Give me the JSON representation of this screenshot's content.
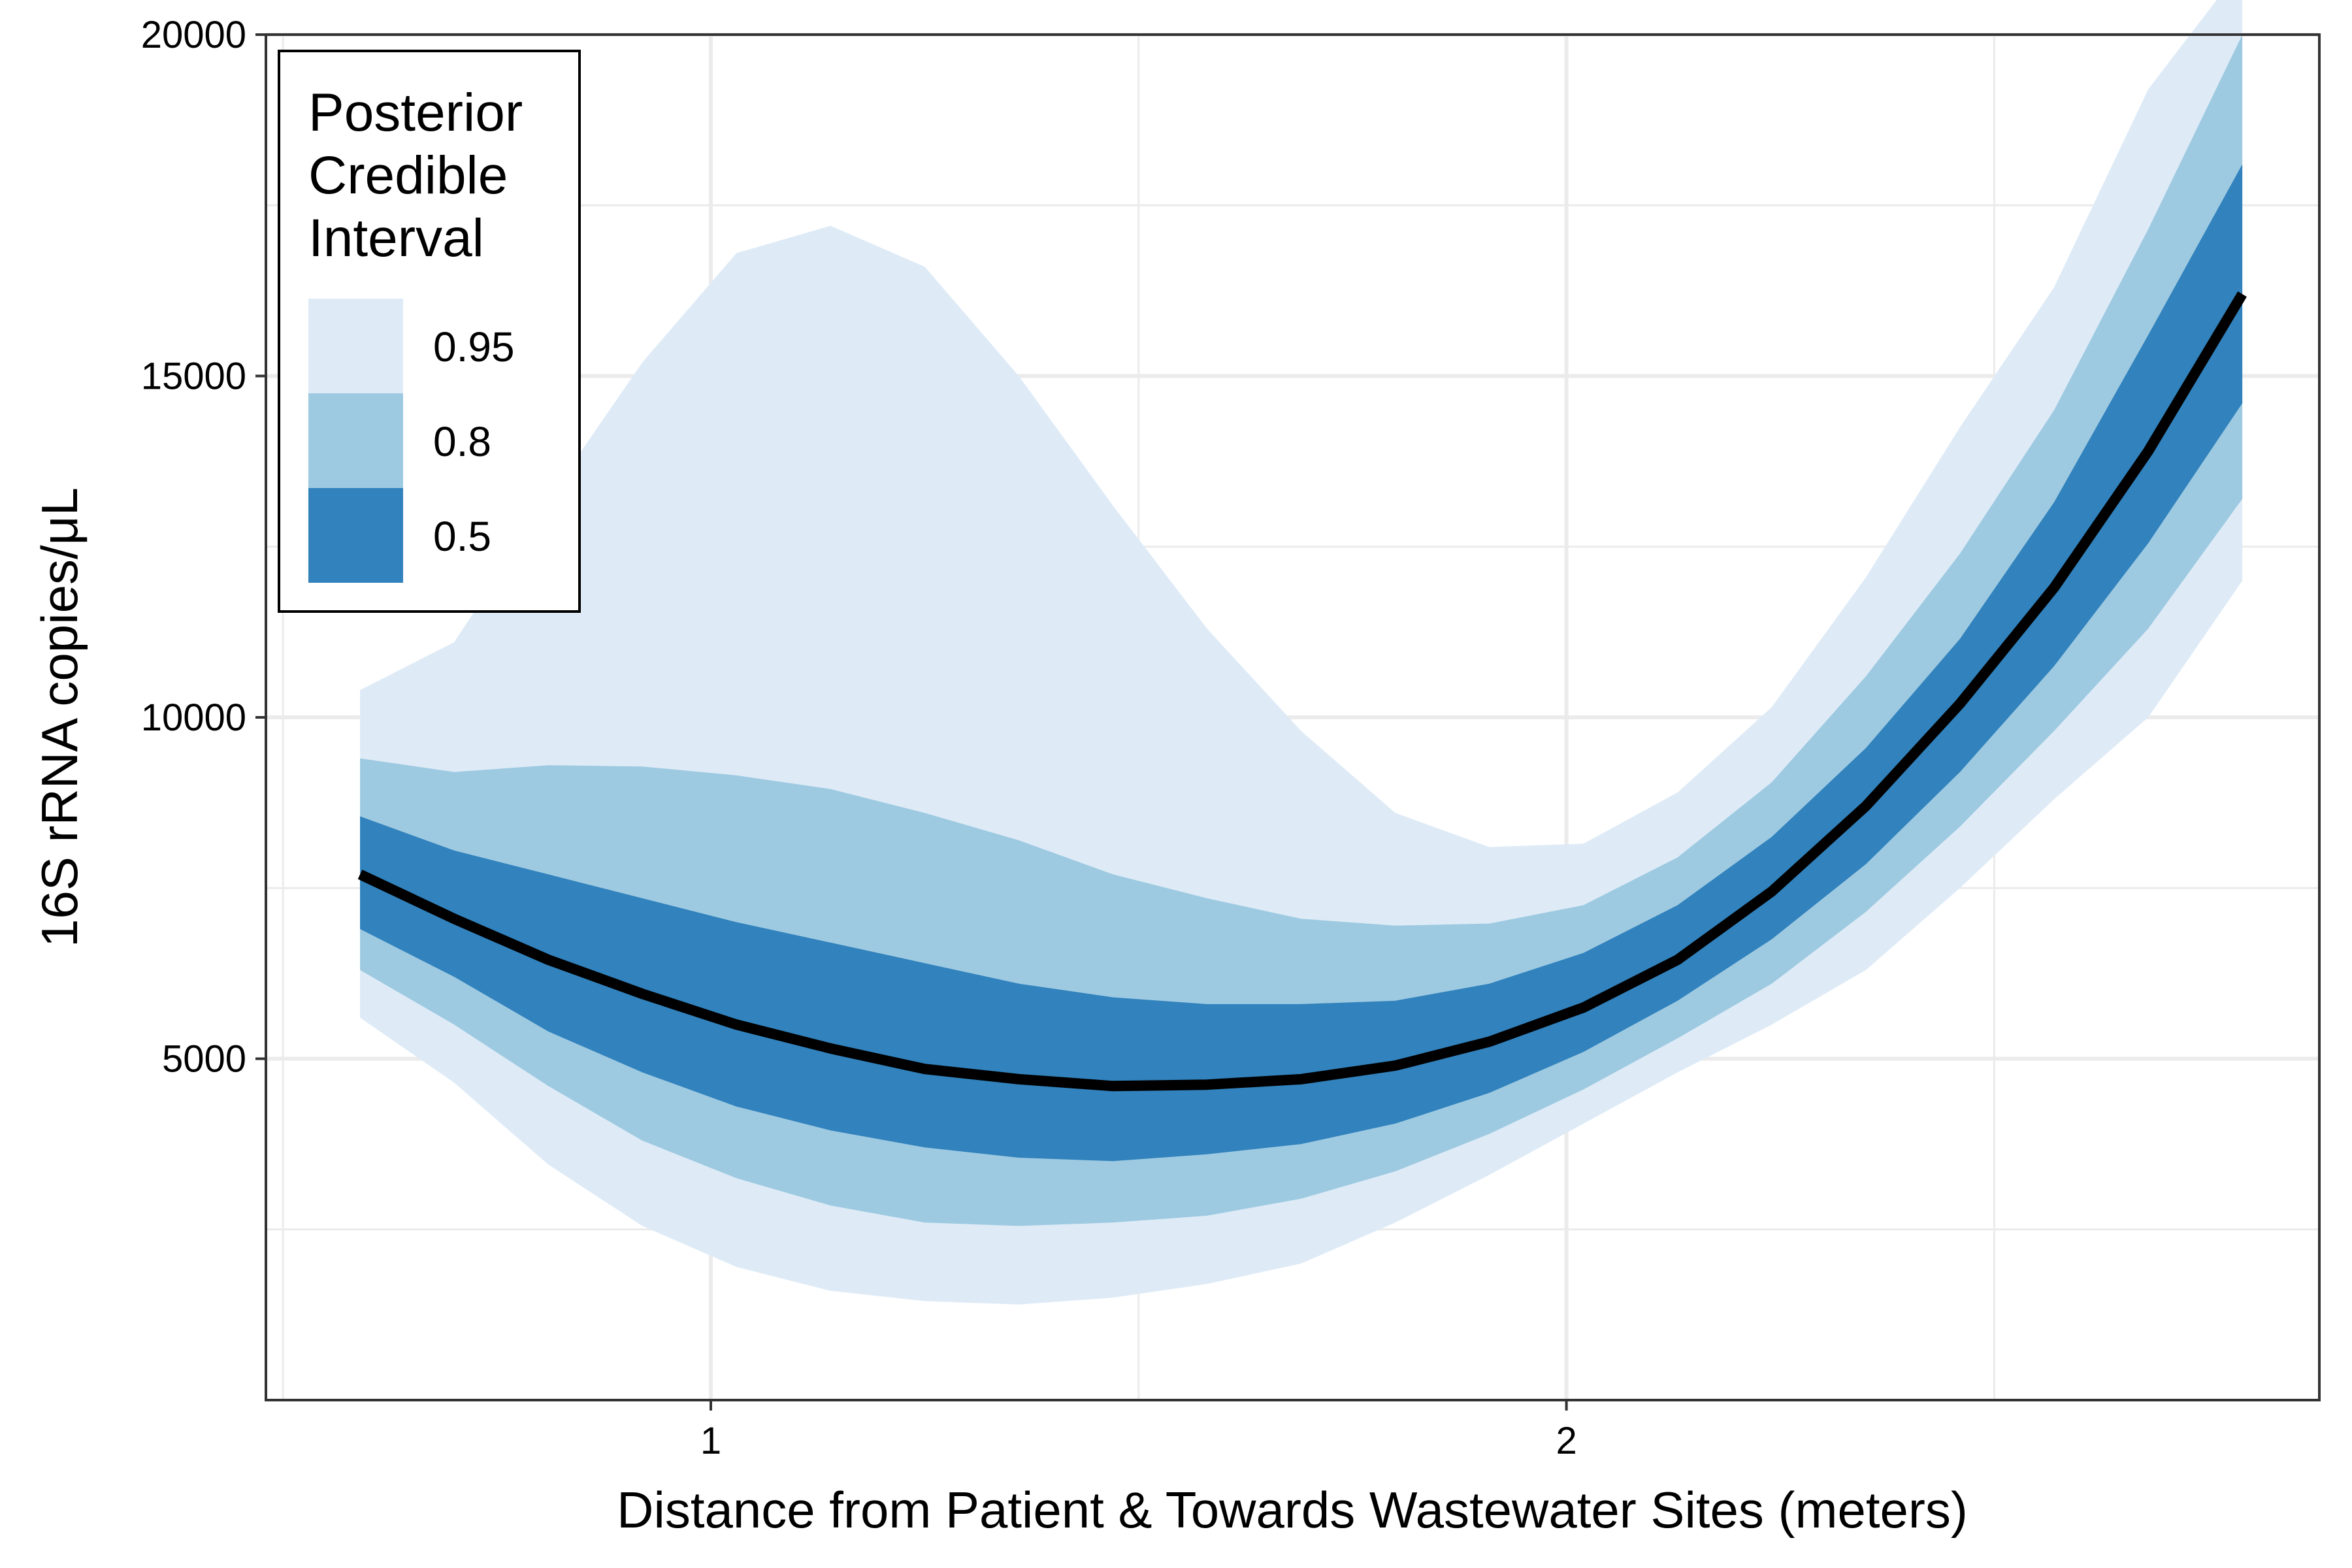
{
  "chart_data": {
    "type": "area",
    "xlabel": "Distance from Patient & Towards Wastewater Sites (meters)",
    "ylabel": "16S rRNA copies/μL",
    "xlim": [
      0.48,
      2.88
    ],
    "ylim": [
      0,
      20000
    ],
    "x_ticks": [
      1,
      2
    ],
    "x_tick_labels": [
      "1",
      "2"
    ],
    "y_ticks": [
      5000,
      10000,
      15000,
      20000
    ],
    "y_tick_labels": [
      "5000",
      "10000",
      "15000",
      "20000"
    ],
    "grid": true,
    "legend": {
      "title_lines": [
        "Posterior",
        "Credible",
        "Interval"
      ],
      "position": "top-left",
      "entries": [
        {
          "label": "0.95",
          "color": "#deebf7"
        },
        {
          "label": "0.8",
          "color": "#9ecae1"
        },
        {
          "label": "0.5",
          "color": "#3182bd"
        }
      ]
    },
    "line_color": "#000000",
    "x": [
      0.59,
      0.7,
      0.81,
      0.92,
      1.03,
      1.14,
      1.25,
      1.36,
      1.47,
      1.58,
      1.69,
      1.8,
      1.91,
      2.02,
      2.13,
      2.24,
      2.35,
      2.46,
      2.57,
      2.68,
      2.79
    ],
    "median": [
      7700,
      7050,
      6450,
      5950,
      5500,
      5150,
      4850,
      4700,
      4600,
      4620,
      4700,
      4900,
      5250,
      5750,
      6450,
      7450,
      8700,
      10200,
      11900,
      13900,
      16200
    ],
    "bands": [
      {
        "level": "0.95",
        "lower": [
          5600,
          4650,
          3450,
          2550,
          1950,
          1600,
          1450,
          1400,
          1500,
          1700,
          2000,
          2600,
          3300,
          4050,
          4800,
          5500,
          6300,
          7500,
          8800,
          10000,
          12000
        ],
        "upper": [
          10400,
          11100,
          13200,
          15200,
          16800,
          17200,
          16600,
          15000,
          13100,
          11300,
          9800,
          8600,
          8100,
          8150,
          8900,
          10150,
          12050,
          14250,
          16300,
          19200,
          21000
        ]
      },
      {
        "level": "0.8",
        "lower": [
          6300,
          5500,
          4600,
          3800,
          3250,
          2850,
          2600,
          2550,
          2600,
          2700,
          2950,
          3350,
          3900,
          4550,
          5300,
          6100,
          7150,
          8400,
          9800,
          11300,
          13200
        ],
        "upper": [
          9400,
          9200,
          9300,
          9280,
          9150,
          8950,
          8600,
          8200,
          7700,
          7350,
          7050,
          6950,
          6980,
          7250,
          7950,
          9050,
          10600,
          12400,
          14500,
          17150,
          20000
        ]
      },
      {
        "level": "0.5",
        "lower": [
          6900,
          6200,
          5400,
          4800,
          4300,
          3950,
          3700,
          3550,
          3500,
          3600,
          3750,
          4050,
          4500,
          5100,
          5850,
          6750,
          7850,
          9200,
          10750,
          12550,
          14600
        ],
        "upper": [
          8550,
          8050,
          7700,
          7350,
          7000,
          6700,
          6400,
          6100,
          5900,
          5800,
          5800,
          5850,
          6100,
          6550,
          7250,
          8250,
          9550,
          11150,
          13150,
          15600,
          18100
        ]
      }
    ]
  }
}
